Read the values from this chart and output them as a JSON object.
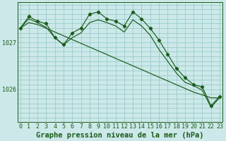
{
  "title": "Graphe pression niveau de la mer (hPa)",
  "background_color": "#cce8e8",
  "grid_color": "#99cccc",
  "line_color": "#1a5c1a",
  "marker_color": "#1a5c1a",
  "text_color": "#1a5c1a",
  "x_labels": [
    "0",
    "1",
    "2",
    "3",
    "4",
    "5",
    "6",
    "7",
    "8",
    "9",
    "10",
    "11",
    "12",
    "13",
    "14",
    "15",
    "16",
    "17",
    "18",
    "19",
    "20",
    "21",
    "22",
    "23"
  ],
  "y_ticks": [
    1026,
    1027
  ],
  "ylim": [
    1025.3,
    1027.85
  ],
  "xlim": [
    -0.3,
    23.3
  ],
  "series_main": [
    1027.3,
    1027.55,
    1027.45,
    1027.4,
    1027.1,
    1026.95,
    1027.2,
    1027.3,
    1027.6,
    1027.65,
    1027.5,
    1027.45,
    1027.35,
    1027.65,
    1027.5,
    1027.3,
    1027.05,
    1026.75,
    1026.45,
    1026.25,
    1026.1,
    1026.05,
    1025.65,
    1025.85
  ],
  "series_trend1": [
    1027.3,
    1027.42,
    1027.38,
    1027.3,
    1027.22,
    1027.14,
    1027.06,
    1026.98,
    1026.9,
    1026.82,
    1026.74,
    1026.66,
    1026.58,
    1026.5,
    1026.42,
    1026.34,
    1026.26,
    1026.18,
    1026.1,
    1026.02,
    1025.94,
    1025.88,
    1025.82,
    1025.82
  ],
  "series_trend2": [
    1027.3,
    1027.5,
    1027.42,
    1027.32,
    1027.1,
    1026.95,
    1027.1,
    1027.2,
    1027.42,
    1027.48,
    1027.42,
    1027.35,
    1027.22,
    1027.48,
    1027.35,
    1027.15,
    1026.85,
    1026.6,
    1026.35,
    1026.15,
    1026.08,
    1025.98,
    1025.62,
    1025.82
  ],
  "title_fontsize": 7.5,
  "tick_fontsize": 6.0
}
